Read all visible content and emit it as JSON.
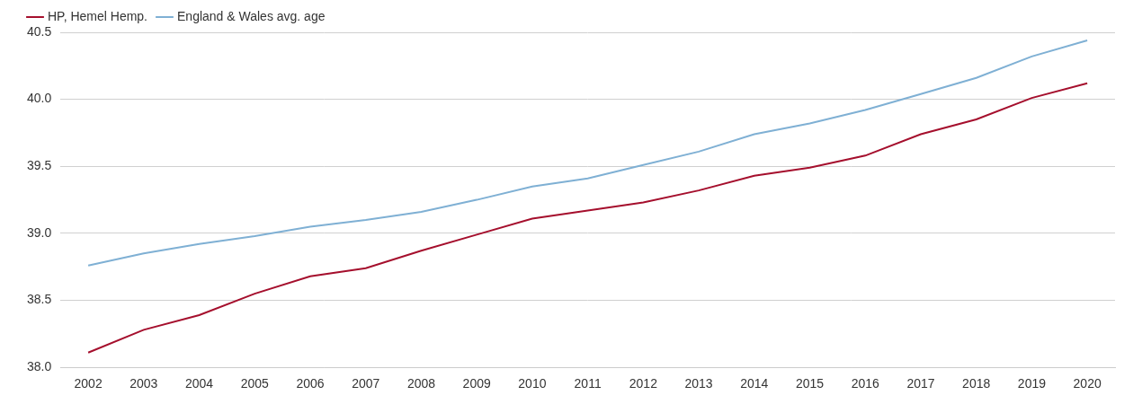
{
  "chart_data": {
    "type": "line",
    "categories": [
      "2002",
      "2003",
      "2004",
      "2005",
      "2006",
      "2007",
      "2008",
      "2009",
      "2010",
      "2011",
      "2012",
      "2013",
      "2014",
      "2015",
      "2016",
      "2017",
      "2018",
      "2019",
      "2020"
    ],
    "series": [
      {
        "name": "HP, Hemel Hemp.",
        "color": "#a50f2d",
        "values": [
          38.11,
          38.28,
          38.39,
          38.55,
          38.68,
          38.74,
          38.87,
          38.99,
          39.11,
          39.17,
          39.23,
          39.32,
          39.43,
          39.49,
          39.58,
          39.74,
          39.85,
          40.01,
          40.12
        ]
      },
      {
        "name": "England & Wales avg. age",
        "color": "#7fb0d4",
        "values": [
          38.76,
          38.85,
          38.92,
          38.98,
          39.05,
          39.1,
          39.16,
          39.25,
          39.35,
          39.41,
          39.51,
          39.61,
          39.74,
          39.82,
          39.92,
          40.04,
          40.16,
          40.32,
          40.44
        ]
      }
    ],
    "ylim": [
      38,
      40.5
    ],
    "yticks": [
      {
        "value": 38,
        "label": "38.0"
      },
      38.5,
      {
        "value": 39,
        "label": "39.0"
      },
      39.5,
      {
        "value": 40,
        "label": "40.0"
      },
      40.5
    ],
    "grid": true,
    "legend": "top-left"
  }
}
